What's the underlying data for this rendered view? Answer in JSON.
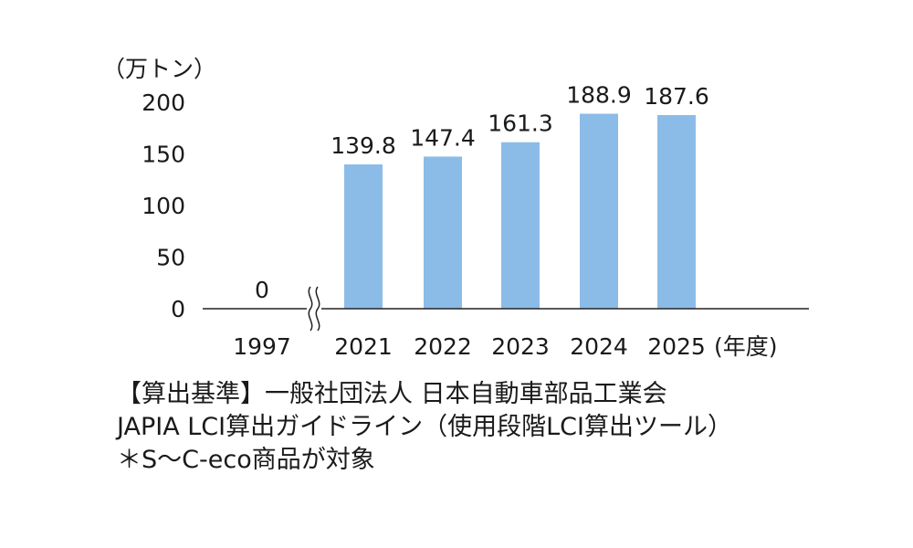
{
  "chart_data": {
    "type": "bar",
    "unit_label": "（万トン）",
    "x_unit_label": "(年度)",
    "categories": [
      "1997",
      "2021",
      "2022",
      "2023",
      "2024",
      "2025"
    ],
    "values": [
      0,
      139.8,
      147.4,
      161.3,
      188.9,
      187.6
    ],
    "value_labels": [
      "0",
      "139.8",
      "147.4",
      "161.3",
      "188.9",
      "187.6"
    ],
    "y_ticks": [
      "0",
      "50",
      "100",
      "150",
      "200"
    ],
    "ylim": [
      0,
      200
    ],
    "axis_break": "between 1997 and 2021",
    "bar_color": "#8bbce8",
    "grid": false,
    "legend": "none"
  },
  "notes": [
    "【算出基準】一般社団法人 日本自動車部品工業会",
    "JAPIA LCI算出ガイドライン（使用段階LCI算出ツール）",
    "＊S～C-eco商品が対象"
  ]
}
